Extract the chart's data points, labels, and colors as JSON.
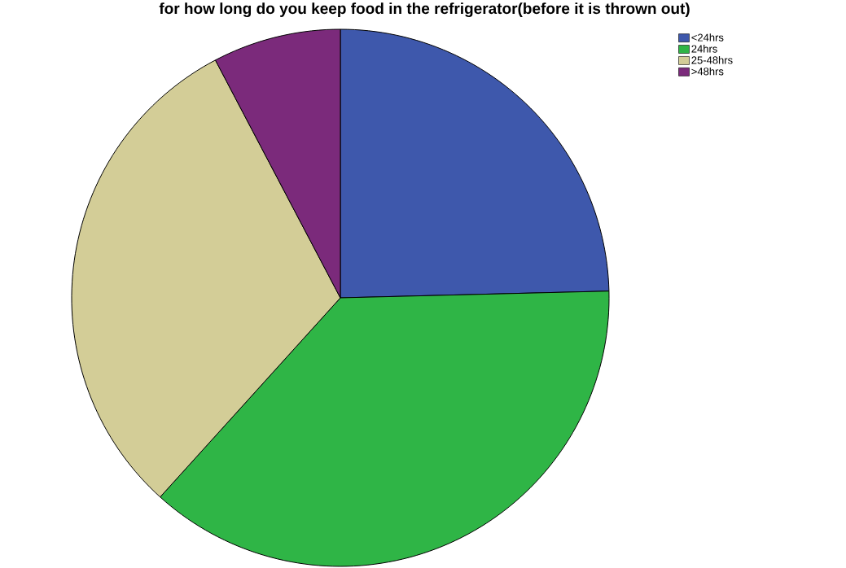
{
  "chart_data": {
    "type": "pie",
    "title": "for how long do you keep food in the refrigerator(before it is thrown out)",
    "categories": [
      "<24hrs",
      "24hrs",
      "25-48hrs",
      ">48hrs"
    ],
    "values": [
      24.6,
      37.1,
      30.6,
      7.7
    ],
    "colors": [
      "#3e58ac",
      "#2fb546",
      "#d3cd97",
      "#7b2a7b"
    ],
    "legend": "top right"
  }
}
